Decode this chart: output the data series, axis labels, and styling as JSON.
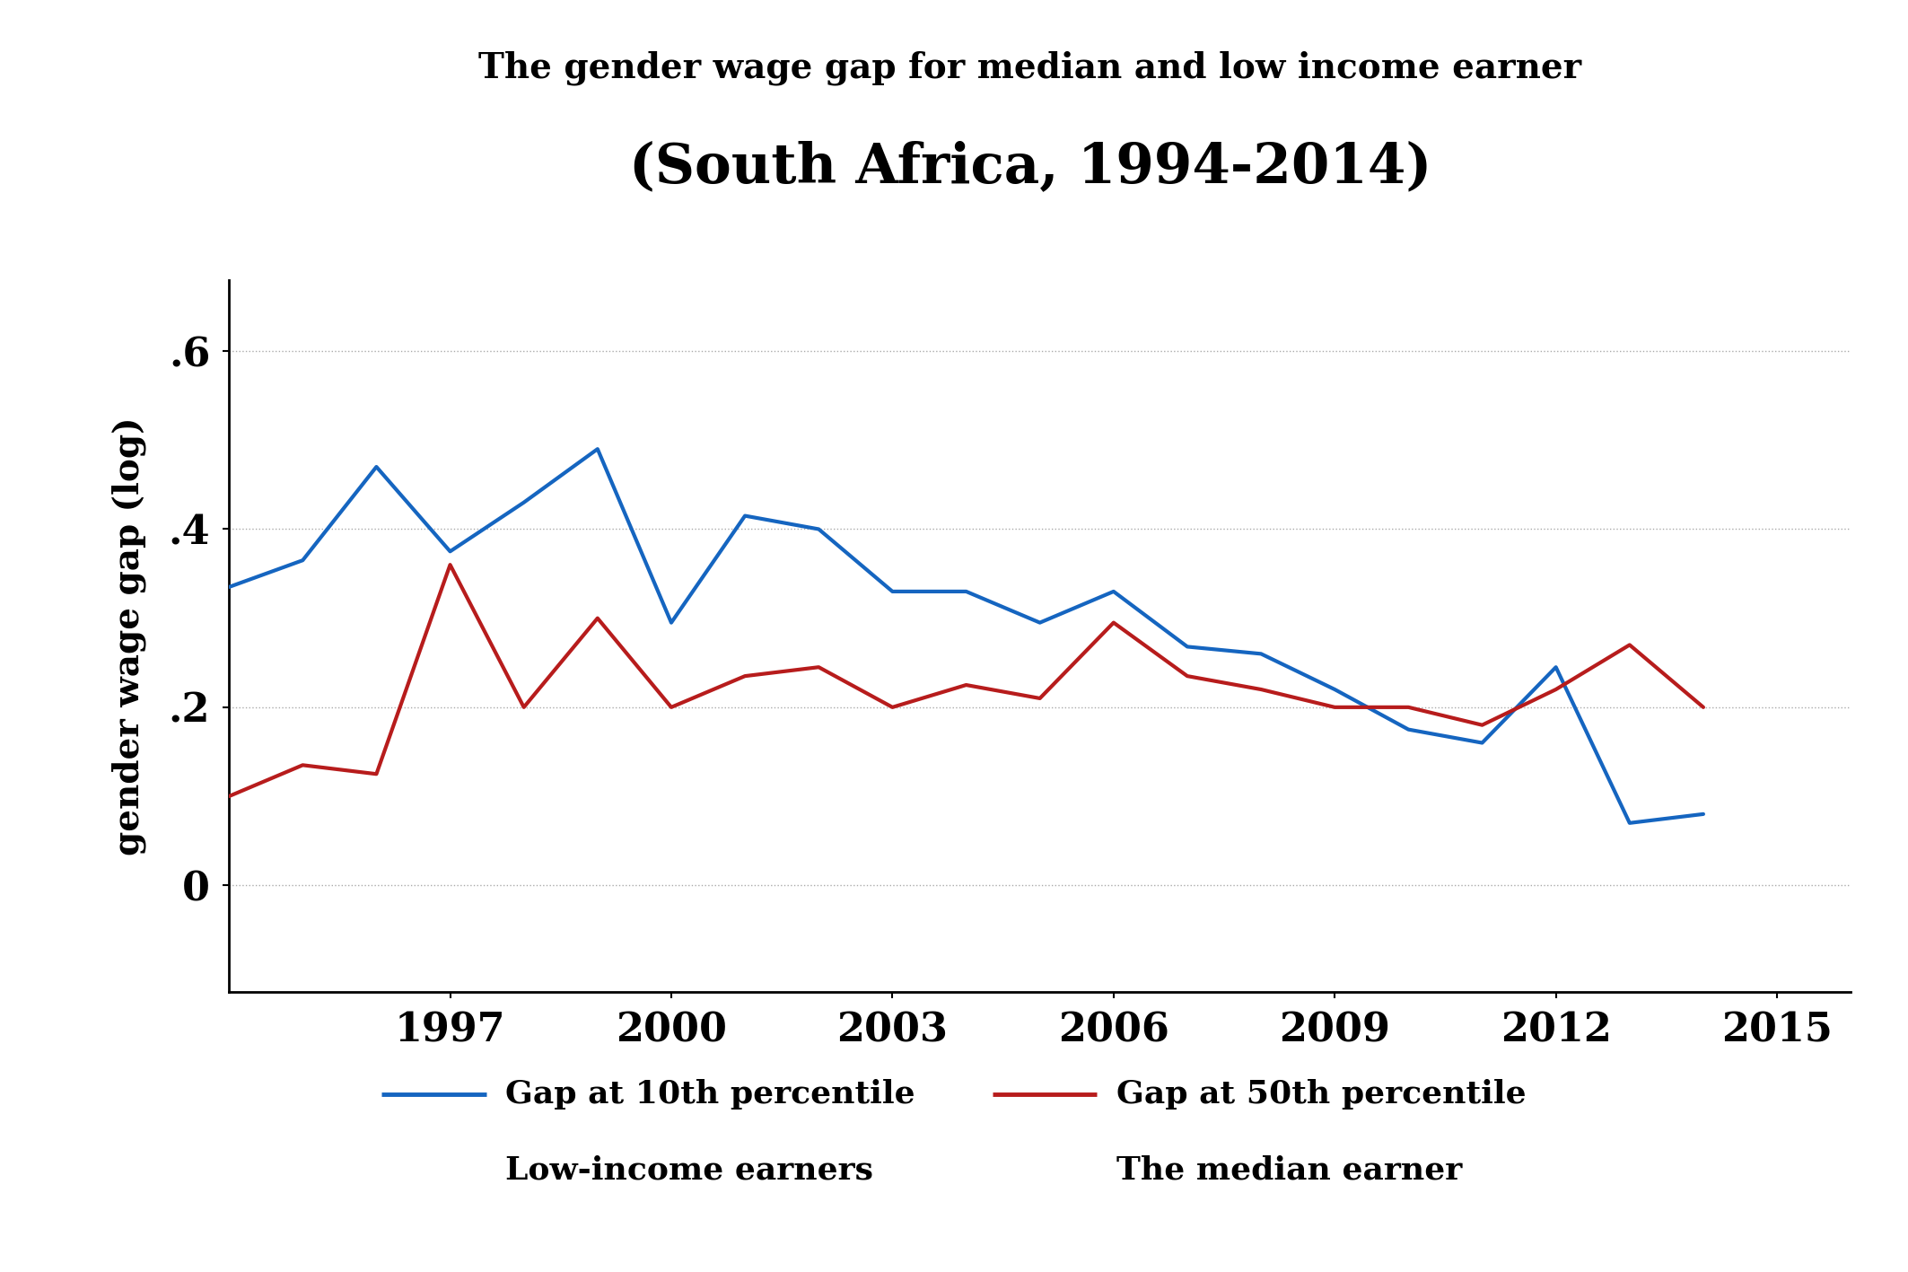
{
  "title_line1": "The gender wage gap for median and low income earner",
  "title_line2": "(South Africa, 1994-2014)",
  "ylabel": "gender wage gap (log)",
  "blue_label_line1": "Gap at 10th percentile",
  "blue_label_line2": "Low-income earners",
  "red_label_line1": "Gap at 50th percentile",
  "red_label_line2": "The median earner",
  "blue_color": "#1565C0",
  "red_color": "#B71C1C",
  "background_color": "#ffffff",
  "xlim": [
    1994.0,
    2016.0
  ],
  "ylim": [
    -0.12,
    0.68
  ],
  "xticks": [
    1997,
    2000,
    2003,
    2006,
    2009,
    2012,
    2015
  ],
  "yticks": [
    0.0,
    0.2,
    0.4,
    0.6
  ],
  "ytick_labels": [
    "0",
    ".2",
    ".4",
    ".6"
  ],
  "blue_x": [
    1994,
    1995,
    1996,
    1997,
    1998,
    1999,
    2000,
    2001,
    2002,
    2003,
    2004,
    2005,
    2006,
    2007,
    2008,
    2009,
    2010,
    2011,
    2012,
    2013,
    2014
  ],
  "blue_y": [
    0.335,
    0.365,
    0.47,
    0.375,
    0.43,
    0.49,
    0.295,
    0.415,
    0.4,
    0.33,
    0.33,
    0.295,
    0.33,
    0.268,
    0.26,
    0.22,
    0.175,
    0.16,
    0.245,
    0.07,
    0.08
  ],
  "red_x": [
    1994,
    1995,
    1996,
    1997,
    1998,
    1999,
    2000,
    2001,
    2002,
    2003,
    2004,
    2005,
    2006,
    2007,
    2008,
    2009,
    2010,
    2011,
    2012,
    2013,
    2014
  ],
  "red_y": [
    0.1,
    0.135,
    0.125,
    0.36,
    0.2,
    0.3,
    0.2,
    0.235,
    0.245,
    0.2,
    0.225,
    0.21,
    0.295,
    0.235,
    0.22,
    0.2,
    0.2,
    0.18,
    0.22,
    0.27,
    0.2
  ],
  "line_width": 3.0,
  "title_fontsize1": 28,
  "title_fontsize2": 44,
  "ylabel_fontsize": 28,
  "tick_fontsize": 32,
  "legend_fontsize": 26,
  "grid_color": "#aaaaaa"
}
